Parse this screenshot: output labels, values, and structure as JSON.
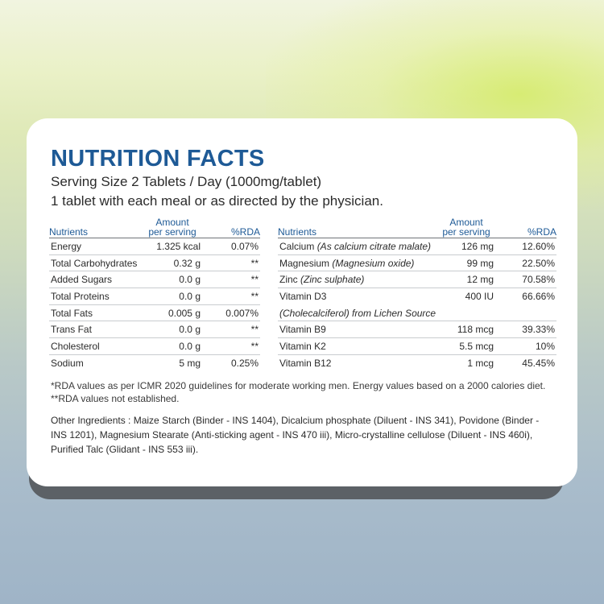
{
  "header": {
    "title": "NUTRITION FACTS",
    "serving": "Serving Size 2 Tablets / Day (1000mg/tablet)",
    "directions": "1 tablet with each meal or as directed by the physician."
  },
  "columns": {
    "nutrients": "Nutrients",
    "amount_line1": "Amount",
    "amount_line2": "per serving",
    "rda": "%RDA"
  },
  "left_rows": [
    {
      "name": "Energy",
      "amount": "1.325 kcal",
      "rda": "0.07%"
    },
    {
      "name": "Total Carbohydrates",
      "amount": "0.32 g",
      "rda": "**"
    },
    {
      "name": "Added Sugars",
      "amount": "0.0 g",
      "rda": "**"
    },
    {
      "name": "Total Proteins",
      "amount": "0.0 g",
      "rda": "**"
    },
    {
      "name": "Total Fats",
      "amount": "0.005 g",
      "rda": "0.007%"
    },
    {
      "name": "Trans Fat",
      "amount": "0.0 g",
      "rda": "**"
    },
    {
      "name": "Cholesterol",
      "amount": "0.0 g",
      "rda": "**"
    },
    {
      "name": "Sodium",
      "amount": "5 mg",
      "rda": "0.25%"
    }
  ],
  "right_rows": [
    {
      "name": "Calcium",
      "detail": "(As calcium citrate malate)",
      "amount": "126 mg",
      "rda": "12.60%"
    },
    {
      "name": "Magnesium",
      "detail": "(Magnesium oxide)",
      "amount": "99 mg",
      "rda": "22.50%"
    },
    {
      "name": "Zinc",
      "detail": "(Zinc sulphate)",
      "amount": "12 mg",
      "rda": "70.58%"
    },
    {
      "name": "Vitamin D3",
      "detail": "(Cholecalciferol) from Lichen Source",
      "amount": "400 IU",
      "rda": "66.66%"
    },
    {
      "name": "Vitamin B9",
      "amount": "118 mcg",
      "rda": "39.33%"
    },
    {
      "name": "Vitamin K2",
      "amount": "5.5 mcg",
      "rda": "10%"
    },
    {
      "name": "Vitamin B12",
      "amount": "1 mcg",
      "rda": "45.45%"
    }
  ],
  "footnotes": {
    "rda_note": "*RDA values as per ICMR 2020 guidelines for moderate working men. Energy values based on a 2000 calories diet.",
    "not_established": "**RDA values not established."
  },
  "ingredients": {
    "line1": "Other Ingredients : Maize Starch (Binder - INS 1404), Dicalcium phosphate (Diluent - INS 341), Povidone (Binder -",
    "line2": "INS 1201), Magnesium Stearate (Anti-sticking agent - INS 470 iii), Micro-crystalline cellulose (Diluent - INS 460i),",
    "line3": "Purified Talc (Glidant - INS 553 iii)."
  },
  "colors": {
    "heading": "#1e5a96",
    "card": "#ffffff",
    "shadow": "#5c6166"
  }
}
